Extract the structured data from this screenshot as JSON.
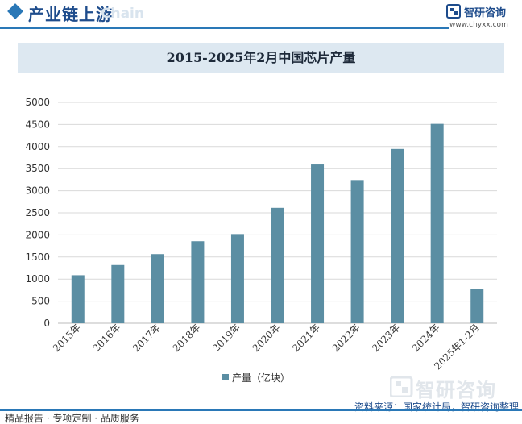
{
  "header": {
    "section_title": "产业链上游",
    "watermark_text": "Chain",
    "brand_name": "智研咨询",
    "brand_url": "www.chyxx.com",
    "accent_color": "#2a78b7",
    "logo_icon": "chyxx-logo-icon"
  },
  "chart_data": {
    "type": "bar",
    "title": "2015-2025年2月中国芯片产量",
    "categories": [
      "2015年",
      "2016年",
      "2017年",
      "2018年",
      "2019年",
      "2020年",
      "2021年",
      "2022年",
      "2023年",
      "2024年",
      "2025年1-2月"
    ],
    "series": [
      {
        "name": "产量（亿块）",
        "values": [
          1087,
          1318,
          1565,
          1857,
          2019,
          2613,
          3594,
          3242,
          3945,
          4514,
          769
        ],
        "color": "#5b8ea3"
      }
    ],
    "ylim": [
      0,
      5000
    ],
    "yticks": [
      0,
      500,
      1000,
      1500,
      2000,
      2500,
      3000,
      3500,
      4000,
      4500,
      5000
    ],
    "xlabel": "",
    "ylabel": "",
    "grid": true,
    "legend": "bottom"
  },
  "watermark": {
    "text": "智研咨询"
  },
  "source": "资料来源：国家统计局，智研咨询整理",
  "footer": "精品报告 · 专项定制 · 品质服务"
}
